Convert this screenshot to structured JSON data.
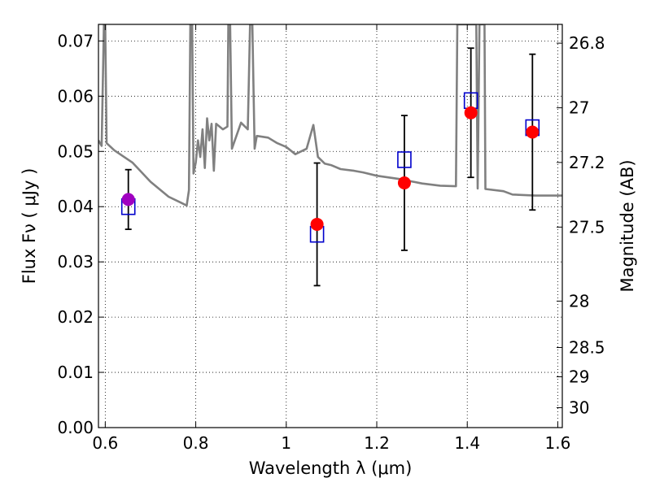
{
  "chart_data": {
    "type": "scatter",
    "title": "",
    "xlabel": "Wavelength  λ (μm)",
    "ylabel_left": "Flux  Fν  ( μJy )",
    "ylabel_right": "Magnitude (AB)",
    "xlim": [
      0.585,
      1.61
    ],
    "ylim": [
      0.0,
      0.073
    ],
    "grid": true,
    "x_ticks": [
      0.6,
      0.8,
      1.0,
      1.2,
      1.4,
      1.6
    ],
    "x_tick_labels": [
      "0.6",
      "0.8",
      "1",
      "1.2",
      "1.4",
      "1.6"
    ],
    "y_ticks": [
      0.0,
      0.01,
      0.02,
      0.03,
      0.04,
      0.05,
      0.06,
      0.07
    ],
    "y_tick_labels": [
      "0.00",
      "0.01",
      "0.02",
      "0.03",
      "0.04",
      "0.05",
      "0.06",
      "0.07"
    ],
    "right_ticks": [
      {
        "flux": 0.0696,
        "label": "26.8"
      },
      {
        "flux": 0.0579,
        "label": "27"
      },
      {
        "flux": 0.048,
        "label": "27.2"
      },
      {
        "flux": 0.0363,
        "label": "27.5"
      },
      {
        "flux": 0.0229,
        "label": "28"
      },
      {
        "flux": 0.0145,
        "label": "28.5"
      },
      {
        "flux": 0.0092,
        "label": "29"
      },
      {
        "flux": 0.0036,
        "label": "30"
      }
    ],
    "colors": {
      "model": "#808080",
      "observed": "#ff0000",
      "observed_first": "#a000c0",
      "synthetic": "#0000cc",
      "errorbar": "#000000"
    },
    "model_spectrum": [
      [
        0.585,
        0.052
      ],
      [
        0.592,
        0.051
      ],
      [
        0.597,
        0.073
      ],
      [
        0.6,
        0.073
      ],
      [
        0.603,
        0.0515
      ],
      [
        0.62,
        0.0502
      ],
      [
        0.66,
        0.048
      ],
      [
        0.7,
        0.0445
      ],
      [
        0.74,
        0.0418
      ],
      [
        0.77,
        0.0406
      ],
      [
        0.78,
        0.0402
      ],
      [
        0.785,
        0.043
      ],
      [
        0.788,
        0.073
      ],
      [
        0.792,
        0.073
      ],
      [
        0.795,
        0.046
      ],
      [
        0.8,
        0.048
      ],
      [
        0.805,
        0.052
      ],
      [
        0.81,
        0.049
      ],
      [
        0.815,
        0.054
      ],
      [
        0.82,
        0.047
      ],
      [
        0.825,
        0.056
      ],
      [
        0.83,
        0.052
      ],
      [
        0.835,
        0.055
      ],
      [
        0.84,
        0.0465
      ],
      [
        0.845,
        0.055
      ],
      [
        0.86,
        0.054
      ],
      [
        0.87,
        0.0545
      ],
      [
        0.872,
        0.073
      ],
      [
        0.876,
        0.073
      ],
      [
        0.88,
        0.0505
      ],
      [
        0.9,
        0.0552
      ],
      [
        0.915,
        0.054
      ],
      [
        0.92,
        0.073
      ],
      [
        0.925,
        0.073
      ],
      [
        0.93,
        0.0505
      ],
      [
        0.935,
        0.0528
      ],
      [
        0.96,
        0.0525
      ],
      [
        0.98,
        0.0515
      ],
      [
        1.0,
        0.0508
      ],
      [
        1.02,
        0.0495
      ],
      [
        1.045,
        0.0505
      ],
      [
        1.06,
        0.0548
      ],
      [
        1.07,
        0.049
      ],
      [
        1.085,
        0.0478
      ],
      [
        1.1,
        0.0475
      ],
      [
        1.12,
        0.0468
      ],
      [
        1.15,
        0.0465
      ],
      [
        1.17,
        0.0462
      ],
      [
        1.2,
        0.0456
      ],
      [
        1.25,
        0.045
      ],
      [
        1.3,
        0.0442
      ],
      [
        1.34,
        0.0438
      ],
      [
        1.375,
        0.0437
      ],
      [
        1.378,
        0.073
      ],
      [
        1.42,
        0.073
      ],
      [
        1.423,
        0.0433
      ],
      [
        1.427,
        0.073
      ],
      [
        1.438,
        0.073
      ],
      [
        1.44,
        0.0432
      ],
      [
        1.48,
        0.0428
      ],
      [
        1.5,
        0.0422
      ],
      [
        1.55,
        0.042
      ],
      [
        1.61,
        0.042
      ]
    ],
    "series": [
      {
        "role": "observed",
        "points": [
          {
            "x": 0.651,
            "y": 0.0413,
            "err": 0.0054
          },
          {
            "x": 1.068,
            "y": 0.0368,
            "err": 0.0111
          },
          {
            "x": 1.261,
            "y": 0.0443,
            "err": 0.0122
          },
          {
            "x": 1.408,
            "y": 0.057,
            "err": 0.0117
          },
          {
            "x": 1.544,
            "y": 0.0535,
            "err": 0.0141
          }
        ]
      },
      {
        "role": "synthetic",
        "points": [
          {
            "x": 0.651,
            "y": 0.04
          },
          {
            "x": 1.068,
            "y": 0.035
          },
          {
            "x": 1.261,
            "y": 0.0485
          },
          {
            "x": 1.408,
            "y": 0.0592
          },
          {
            "x": 1.544,
            "y": 0.0543
          }
        ]
      }
    ]
  }
}
